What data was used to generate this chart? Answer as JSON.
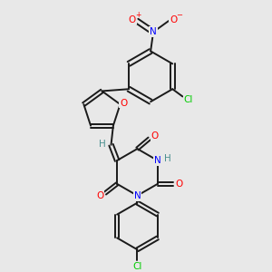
{
  "bg_color": "#e8e8e8",
  "bond_color": "#1a1a1a",
  "N_color": "#0000ff",
  "O_color": "#ff0000",
  "Cl_color": "#00cc00",
  "H_color": "#4a9090",
  "fig_size": [
    3.0,
    3.0
  ],
  "dpi": 100,
  "lw": 1.4,
  "xlim": [
    0,
    10
  ],
  "ylim": [
    0,
    10
  ]
}
